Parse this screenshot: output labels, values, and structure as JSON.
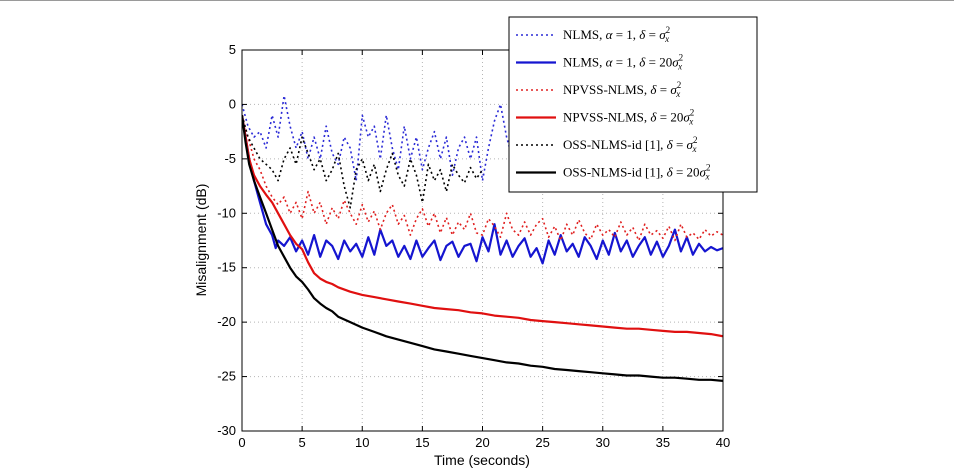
{
  "chart_data": {
    "type": "line",
    "title": "",
    "xlabel": "Time (seconds)",
    "ylabel": "Misalignment (dB)",
    "xlim": [
      0,
      40
    ],
    "ylim": [
      -30,
      5
    ],
    "xticks": [
      0,
      5,
      10,
      15,
      20,
      25,
      30,
      35,
      40
    ],
    "yticks": [
      5,
      0,
      -5,
      -10,
      -15,
      -20,
      -25,
      -30
    ],
    "grid": true,
    "legend_position": "top-right",
    "series": [
      {
        "name": "NLMS, α = 1, δ = σ²ₓ",
        "legend": {
          "base": "NLMS, ",
          "sym1": "α",
          "mid": " = 1, ",
          "sym2": "δ",
          "eq": " = ",
          "coef": "",
          "sym3": "σ",
          "sup": "2",
          "sub": "x"
        },
        "color": "#2b2bd6",
        "dash": "2,3",
        "width": 1.6,
        "x": [
          0,
          0.5,
          1,
          1.5,
          2,
          2.5,
          3,
          3.5,
          4,
          4.5,
          5,
          5.5,
          6,
          6.5,
          7,
          7.5,
          8,
          8.5,
          9,
          9.5,
          10,
          10.5,
          11,
          11.5,
          12,
          12.5,
          13,
          13.5,
          14,
          14.5,
          15,
          15.5,
          16,
          16.5,
          17,
          17.5,
          18,
          18.5,
          19,
          19.5,
          20,
          20.5,
          21,
          21.5,
          22,
          22.5,
          23,
          23.5,
          24,
          24.5,
          25,
          25.5,
          26,
          26.5,
          27,
          27.5,
          28,
          28.5,
          29,
          29.5,
          30,
          30.5,
          31,
          31.5,
          32,
          32.5,
          33,
          33.5,
          34,
          34.5,
          35,
          35.5,
          36,
          36.5,
          37,
          37.5,
          38,
          38.5,
          39,
          39.5,
          40
        ],
        "y": [
          0,
          -2,
          -3,
          -2.5,
          -4,
          -1,
          -3,
          0.8,
          -2,
          -4,
          -2.5,
          -5,
          -3,
          -5,
          -2,
          -4.5,
          -5.5,
          -3,
          -4,
          -7,
          -1,
          -3,
          -2,
          -5,
          -1,
          -4,
          -6,
          -2,
          -5,
          -3,
          -6,
          -4,
          -2.5,
          -5,
          -3,
          -6.5,
          -4,
          -3,
          -5,
          -3,
          -7,
          -4,
          -1.5,
          0,
          -3,
          -5,
          -1,
          -4,
          -2,
          -5,
          -3,
          -6,
          -1.5,
          -4,
          -2,
          -3.5,
          -5,
          -2,
          -4,
          -3,
          -1,
          -4,
          -2.5,
          -5,
          -3,
          -1.5,
          -4,
          -3,
          -5,
          -2,
          -3,
          -4.5,
          -2.5,
          -6,
          -3,
          -4,
          -2,
          -5,
          -3,
          -4,
          -2.5
        ]
      },
      {
        "name": "NLMS, α = 1, δ = 20σ²ₓ",
        "legend": {
          "base": "NLMS, ",
          "sym1": "α",
          "mid": " = 1, ",
          "sym2": "δ",
          "eq": " = ",
          "coef": "20",
          "sym3": "σ",
          "sup": "2",
          "sub": "x"
        },
        "color": "#1515d0",
        "dash": "",
        "width": 2.2,
        "x": [
          0,
          0.3,
          0.6,
          1,
          1.5,
          2,
          2.5,
          2.8,
          3,
          3.5,
          4,
          4.5,
          5,
          5.5,
          6,
          6.5,
          7,
          7.5,
          8,
          8.5,
          9,
          9.5,
          10,
          10.5,
          11,
          11.5,
          12,
          12.5,
          13,
          13.5,
          14,
          14.5,
          15,
          15.5,
          16,
          16.5,
          17,
          17.5,
          18,
          18.5,
          19,
          19.5,
          20,
          20.5,
          21,
          21.5,
          22,
          22.5,
          23,
          23.5,
          24,
          24.5,
          25,
          25.5,
          26,
          26.5,
          27,
          27.5,
          28,
          28.5,
          29,
          29.5,
          30,
          30.5,
          31,
          31.5,
          32,
          32.5,
          33,
          33.5,
          34,
          34.5,
          35,
          35.5,
          36,
          36.5,
          37,
          37.5,
          38,
          38.5,
          39,
          39.5,
          40
        ],
        "y": [
          -1,
          -3,
          -5,
          -7,
          -9,
          -11,
          -12,
          -13.2,
          -12.5,
          -13,
          -12.2,
          -13.5,
          -12.5,
          -13.8,
          -12,
          -14,
          -12.5,
          -13,
          -14.2,
          -12.5,
          -13.5,
          -12.8,
          -14,
          -12.2,
          -13.8,
          -11.5,
          -13,
          -12.5,
          -14,
          -13,
          -14.2,
          -12.5,
          -14,
          -13.2,
          -12.5,
          -14.3,
          -13,
          -12.6,
          -14,
          -13,
          -12.8,
          -14.4,
          -12.2,
          -13.5,
          -11,
          -13.8,
          -12.5,
          -14,
          -13,
          -12.3,
          -14,
          -13.2,
          -14.6,
          -12.5,
          -13.8,
          -12,
          -13.5,
          -12.8,
          -14,
          -12.2,
          -13,
          -14.2,
          -12.5,
          -13.8,
          -11.8,
          -13.5,
          -12.5,
          -14,
          -13,
          -12.2,
          -13.8,
          -12.6,
          -14,
          -13,
          -11.5,
          -13.5,
          -12.2,
          -13.8,
          -12.8,
          -13.5,
          -13.1,
          -13.4,
          -13.2
        ]
      },
      {
        "name": "NPVSS-NLMS, δ = σ²ₓ",
        "legend": {
          "base": "NPVSS-NLMS, ",
          "sym1": "",
          "mid": "",
          "sym2": "δ",
          "eq": " = ",
          "coef": "",
          "sym3": "σ",
          "sup": "2",
          "sub": "x"
        },
        "color": "#e02020",
        "dash": "2,3",
        "width": 1.6,
        "x": [
          0,
          0.5,
          1,
          1.5,
          2,
          2.5,
          3,
          3.5,
          4,
          4.5,
          5,
          5.5,
          6,
          6.5,
          7,
          7.5,
          8,
          8.5,
          9,
          9.5,
          10,
          10.5,
          11,
          11.5,
          12,
          12.5,
          13,
          13.5,
          14,
          14.5,
          15,
          15.5,
          16,
          16.5,
          17,
          17.5,
          18,
          18.5,
          19,
          19.5,
          20,
          20.5,
          21,
          21.5,
          22,
          22.5,
          23,
          23.5,
          24,
          24.5,
          25,
          25.5,
          26,
          26.5,
          27,
          27.5,
          28,
          28.5,
          29,
          29.5,
          30,
          30.5,
          31,
          31.5,
          32,
          32.5,
          33,
          33.5,
          34,
          34.5,
          35,
          35.5,
          36,
          36.5,
          37,
          37.5,
          38,
          38.5,
          39,
          39.5,
          40
        ],
        "y": [
          -1,
          -3,
          -5,
          -6,
          -7.5,
          -8.5,
          -9.2,
          -8.5,
          -10,
          -9,
          -10.5,
          -8,
          -10,
          -9,
          -11,
          -9.5,
          -10.5,
          -8.8,
          -10,
          -11,
          -9.2,
          -10.8,
          -9.8,
          -11.5,
          -10,
          -9.2,
          -11,
          -10.2,
          -12,
          -10.5,
          -9.6,
          -11.2,
          -10,
          -11.8,
          -10.4,
          -12,
          -10.8,
          -11.5,
          -10,
          -11.8,
          -12,
          -10.5,
          -11.2,
          -12.2,
          -10,
          -11.5,
          -12,
          -10.8,
          -12,
          -11,
          -10.5,
          -12.2,
          -11.2,
          -12.5,
          -11,
          -12,
          -10.6,
          -11.8,
          -12.4,
          -11,
          -12,
          -11.5,
          -12.2,
          -10.8,
          -12,
          -11.3,
          -12.5,
          -11,
          -12,
          -11.6,
          -12.3,
          -11.2,
          -12.5,
          -11,
          -12.2,
          -11.8,
          -12.4,
          -11.5,
          -12.1,
          -11.7,
          -12
        ]
      },
      {
        "name": "NPVSS-NLMS, δ = 20σ²ₓ",
        "legend": {
          "base": "NPVSS-NLMS, ",
          "sym1": "",
          "mid": "",
          "sym2": "δ",
          "eq": " = ",
          "coef": "20",
          "sym3": "σ",
          "sup": "2",
          "sub": "x"
        },
        "color": "#e01010",
        "dash": "",
        "width": 2.2,
        "x": [
          0,
          0.3,
          0.6,
          1,
          1.5,
          2,
          2.5,
          3,
          3.5,
          4,
          4.5,
          5,
          5.5,
          6,
          6.5,
          7,
          7.5,
          8,
          9,
          10,
          11,
          12,
          13,
          14,
          15,
          16,
          17,
          18,
          19,
          20,
          21,
          22,
          23,
          24,
          25,
          26,
          27,
          28,
          29,
          30,
          31,
          32,
          33,
          34,
          35,
          36,
          37,
          38,
          39,
          40
        ],
        "y": [
          -1,
          -3,
          -5,
          -6.5,
          -7.5,
          -8.3,
          -9,
          -10,
          -11,
          -12,
          -12.8,
          -13.3,
          -14.5,
          -15.5,
          -16,
          -16.3,
          -16.5,
          -16.8,
          -17.2,
          -17.5,
          -17.7,
          -17.9,
          -18.1,
          -18.3,
          -18.5,
          -18.7,
          -18.8,
          -18.9,
          -19.1,
          -19.2,
          -19.4,
          -19.5,
          -19.6,
          -19.8,
          -19.9,
          -20.0,
          -20.1,
          -20.2,
          -20.3,
          -20.4,
          -20.5,
          -20.6,
          -20.6,
          -20.7,
          -20.8,
          -20.9,
          -20.9,
          -21.0,
          -21.1,
          -21.3
        ]
      },
      {
        "name": "OSS-NLMS-id [1], δ = σ²ₓ",
        "legend": {
          "base": "OSS-NLMS-id [1], ",
          "sym1": "",
          "mid": "",
          "sym2": "δ",
          "eq": " = ",
          "coef": "",
          "sym3": "σ",
          "sup": "2",
          "sub": "x"
        },
        "color": "#000000",
        "dash": "2,3",
        "width": 1.6,
        "x": [
          0,
          0.5,
          1,
          1.5,
          2,
          2.5,
          3,
          3.5,
          4,
          4.5,
          5,
          5.5,
          6,
          6.5,
          7,
          7.5,
          8,
          8.5,
          9,
          9.5,
          10,
          10.5,
          11,
          11.5,
          12,
          12.5,
          13,
          13.5,
          14,
          14.5,
          15,
          15.5,
          16,
          16.5,
          17,
          17.5,
          18,
          18.5,
          19,
          19.5,
          20
        ],
        "y": [
          -1,
          -3,
          -4,
          -5,
          -5.5,
          -6,
          -7,
          -5,
          -4,
          -5.5,
          -3,
          -4.5,
          -6,
          -5,
          -7,
          -6,
          -4.5,
          -7.5,
          -9.5,
          -6,
          -5,
          -7,
          -5.5,
          -8,
          -6,
          -4.5,
          -6.5,
          -7.5,
          -5,
          -6.5,
          -9,
          -5.5,
          -7,
          -6,
          -8,
          -5.5,
          -6.5,
          -7.2,
          -5.8,
          -6.8,
          -6
        ]
      },
      {
        "name": "OSS-NLMS-id [1], δ = 20σ²ₓ",
        "legend": {
          "base": "OSS-NLMS-id [1], ",
          "sym1": "",
          "mid": "",
          "sym2": "δ",
          "eq": " = ",
          "coef": "20",
          "sym3": "σ",
          "sup": "2",
          "sub": "x"
        },
        "color": "#000000",
        "dash": "",
        "width": 2.2,
        "x": [
          0,
          0.3,
          0.6,
          1,
          1.5,
          2,
          2.5,
          3,
          3.5,
          4,
          4.5,
          5,
          5.5,
          6,
          6.5,
          7,
          7.5,
          8,
          9,
          10,
          11,
          12,
          13,
          14,
          15,
          16,
          17,
          18,
          19,
          20,
          21,
          22,
          23,
          24,
          25,
          26,
          27,
          28,
          29,
          30,
          31,
          32,
          33,
          34,
          35,
          36,
          37,
          38,
          39,
          40
        ],
        "y": [
          -1,
          -3.5,
          -5.5,
          -7,
          -8.5,
          -10,
          -11.5,
          -13,
          -14,
          -15,
          -15.8,
          -16.3,
          -17,
          -17.8,
          -18.3,
          -18.7,
          -19,
          -19.5,
          -20,
          -20.5,
          -20.9,
          -21.3,
          -21.6,
          -21.9,
          -22.2,
          -22.5,
          -22.7,
          -22.9,
          -23.1,
          -23.3,
          -23.5,
          -23.7,
          -23.8,
          -24.0,
          -24.1,
          -24.3,
          -24.4,
          -24.5,
          -24.6,
          -24.7,
          -24.8,
          -24.9,
          -24.9,
          -25.0,
          -25.1,
          -25.1,
          -25.2,
          -25.3,
          -25.3,
          -25.4
        ]
      }
    ]
  }
}
